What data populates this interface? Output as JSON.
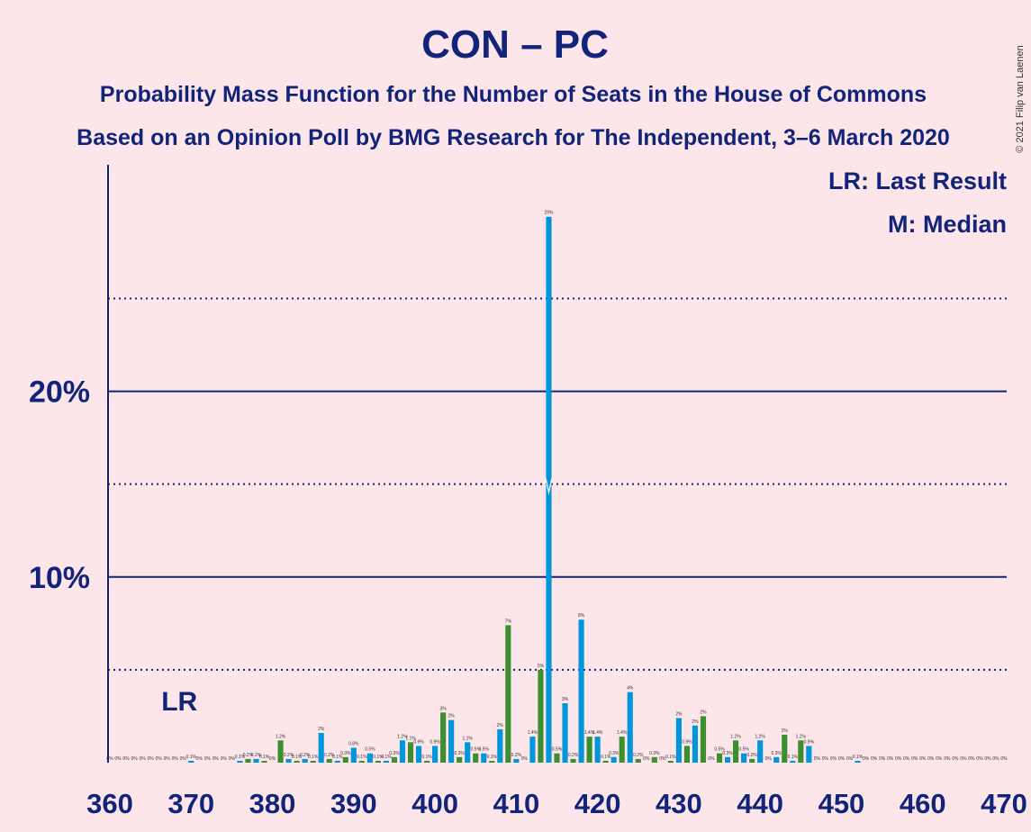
{
  "chart_data": {
    "type": "bar",
    "title": "CON – PC",
    "subtitle": "Probability Mass Function for the Number of Seats in the House of Commons",
    "subtitle2": "Based on an Opinion Poll by BMG Research for The Independent, 3–6 March 2020",
    "legend": [
      "LR: Last Result",
      "M: Median"
    ],
    "last_result_label": "LR",
    "last_result": 369,
    "median": 414,
    "credit": "© 2021 Filip van Laenen",
    "colors": [
      "#0096db",
      "#3b8f2e"
    ],
    "x": [
      360,
      361,
      362,
      363,
      364,
      365,
      366,
      367,
      368,
      369,
      370,
      371,
      372,
      373,
      374,
      375,
      376,
      377,
      378,
      379,
      380,
      381,
      382,
      383,
      384,
      385,
      386,
      387,
      388,
      389,
      390,
      391,
      392,
      393,
      394,
      395,
      396,
      397,
      398,
      399,
      400,
      401,
      402,
      403,
      404,
      405,
      406,
      407,
      408,
      409,
      410,
      411,
      412,
      413,
      414,
      415,
      416,
      417,
      418,
      419,
      420,
      421,
      422,
      423,
      424,
      425,
      426,
      427,
      428,
      429,
      430,
      431,
      432,
      433,
      434,
      435,
      436,
      437,
      438,
      439,
      440,
      441,
      442,
      443,
      444,
      445,
      446,
      447,
      448,
      449,
      450,
      451,
      452,
      453,
      454,
      455,
      456,
      457,
      458,
      459,
      460,
      461,
      462,
      463,
      464,
      465,
      466,
      467,
      468,
      469,
      470
    ],
    "values": [
      0,
      0,
      0,
      0,
      0,
      0,
      0,
      0,
      0,
      0,
      0.1,
      0,
      0,
      0,
      0,
      0,
      0.1,
      0.2,
      0.2,
      0.1,
      0,
      1.2,
      0.2,
      0.1,
      0.2,
      0.1,
      1.6,
      0.2,
      0.1,
      0.3,
      0.8,
      0.1,
      0.5,
      0.1,
      0.1,
      0.3,
      1.2,
      1.1,
      0.9,
      0.1,
      0.9,
      2.7,
      2.3,
      0.3,
      1.1,
      0.5,
      0.5,
      0.1,
      1.8,
      7.4,
      0.2,
      0,
      1.4,
      5.0,
      29.4,
      0.5,
      3.2,
      0.2,
      7.7,
      1.4,
      1.4,
      0.1,
      0.3,
      1.4,
      3.8,
      0.2,
      0,
      0.3,
      0,
      0.1,
      2.4,
      0.9,
      2.0,
      2.5,
      0,
      0.5,
      0.3,
      1.2,
      0.5,
      0.2,
      1.2,
      0,
      0.3,
      1.5,
      0.1,
      1.2,
      0.9,
      0,
      0,
      0,
      0,
      0,
      0.1,
      0,
      0,
      0,
      0,
      0,
      0,
      0,
      0,
      0,
      0,
      0,
      0,
      0,
      0,
      0,
      0,
      0,
      0
    ],
    "value_labels": [
      "0%",
      "0%",
      "0%",
      "0%",
      "0%",
      "0%",
      "0%",
      "0%",
      "0%",
      "0%",
      "0.1%",
      "0%",
      "0%",
      "0%",
      "0%",
      "0%",
      "0.1%",
      "0.2%",
      "0.2%",
      "0.1%",
      "0%",
      "1.2%",
      "0.2%",
      "0.1%",
      "0.2%",
      "0.1%",
      "2%",
      "0.2%",
      "0.1%",
      "0.3%",
      "0.8%",
      "0.1%",
      "0.5%",
      "0.1%",
      "0.1%",
      "0.3%",
      "1.2%",
      "1.1%",
      "0.9%",
      "0.1%",
      "0.9%",
      "3%",
      "2%",
      "0.3%",
      "1.1%",
      "0.5%",
      "0.5%",
      "0.1%",
      "2%",
      "7%",
      "0.2%",
      "0%",
      "1.4%",
      "5%",
      "29%",
      "0.5%",
      "3%",
      "0.2%",
      "8%",
      "1.4%",
      "1.4%",
      "0.1%",
      "0.3%",
      "1.4%",
      "4%",
      "0.2%",
      "0%",
      "0.3%",
      "0%",
      "0.1%",
      "2%",
      "0.9%",
      "2%",
      "2%",
      "0%",
      "0.5%",
      "0.3%",
      "1.2%",
      "0.5%",
      "0.2%",
      "1.2%",
      "0%",
      "0.3%",
      "2%",
      "0.1%",
      "1.2%",
      "0.9%",
      "0%",
      "0%",
      "0%",
      "0%",
      "0%",
      "0.1%",
      "0%",
      "0%",
      "0%",
      "0%",
      "0%",
      "0%",
      "0%",
      "0%",
      "0%",
      "0%",
      "0%",
      "0%",
      "0%",
      "0%",
      "0%",
      "0%",
      "0%",
      "0%"
    ],
    "xlim": [
      360,
      470
    ],
    "xticks": [
      360,
      370,
      380,
      390,
      400,
      410,
      420,
      430,
      440,
      450,
      460,
      470
    ],
    "ylim": [
      0,
      32.2
    ],
    "yticks": [
      {
        "value": 10,
        "label": "10%"
      },
      {
        "value": 20,
        "label": "20%"
      }
    ],
    "minor_yticks": [
      5,
      15,
      25
    ],
    "grid": true
  }
}
